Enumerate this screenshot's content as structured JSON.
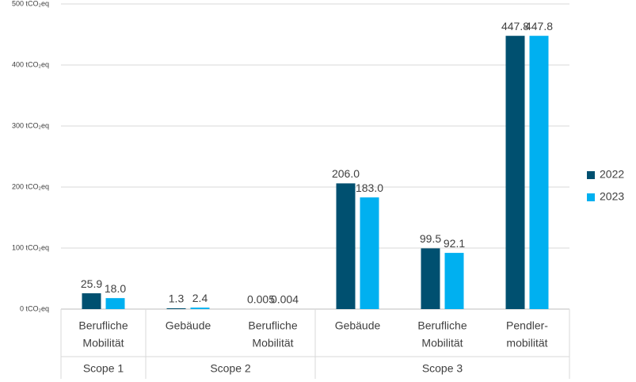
{
  "chart_data": {
    "type": "bar",
    "groups": [
      {
        "name": "Scope 1",
        "categories": [
          [
            "Berufliche",
            "Mobilität"
          ]
        ]
      },
      {
        "name": "Scope 2",
        "categories": [
          [
            "Gebäude"
          ],
          [
            "Berufliche",
            "Mobilität"
          ]
        ]
      },
      {
        "name": "Scope 3",
        "categories": [
          [
            "Gebäude"
          ],
          [
            "Berufliche",
            "Mobilität"
          ],
          [
            "Pendler-",
            "mobilität"
          ]
        ]
      }
    ],
    "series": [
      {
        "name": "2022",
        "color": "#005070",
        "values": [
          25.9,
          1.3,
          0.005,
          206.0,
          99.5,
          447.8
        ],
        "value_labels": [
          "25.9",
          "1.3",
          "0.005",
          "206.0",
          "99.5",
          "447.8"
        ]
      },
      {
        "name": "2023",
        "color": "#00b0f0",
        "values": [
          18.0,
          2.4,
          0.004,
          183.0,
          92.1,
          447.8
        ],
        "value_labels": [
          "18.0",
          "2.4",
          "0.004",
          "183.0",
          "92.1",
          "447.8"
        ]
      }
    ],
    "ylim": [
      0,
      500
    ],
    "yticks": [
      {
        "value": 0,
        "label": "0 tCO₂eq"
      },
      {
        "value": 100,
        "label": "100 tCO₂eq"
      },
      {
        "value": 200,
        "label": "200 tCO₂eq"
      },
      {
        "value": 300,
        "label": "300 tCO₂eq"
      },
      {
        "value": 400,
        "label": "400 tCO₂eq"
      },
      {
        "value": 500,
        "label": "500 tCO₂eq"
      }
    ],
    "grid": true,
    "legend": "right"
  }
}
